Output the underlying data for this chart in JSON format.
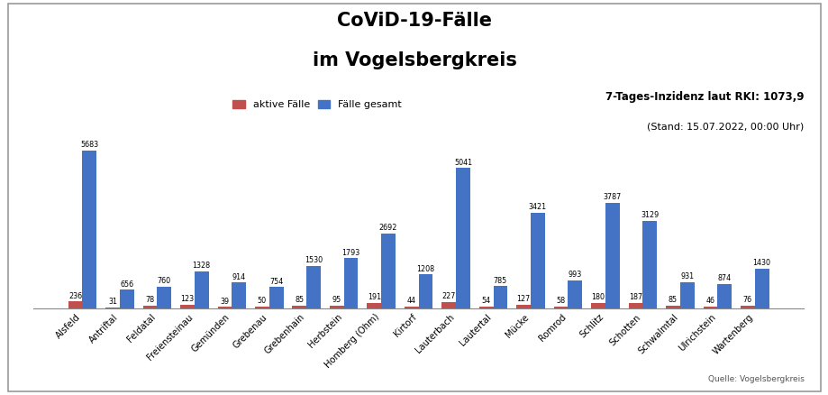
{
  "categories": [
    "Alsfeld",
    "Antriftal",
    "Feldatal",
    "Freiensteinau",
    "Gemünden",
    "Grebenau",
    "Grebenhain",
    "Herbstein",
    "Homberg (Ohm)",
    "Kirtorf",
    "Lauterbach",
    "Lautertal",
    "Mücke",
    "Romrod",
    "Schlitz",
    "Schotten",
    "Schwalmtal",
    "Ulrichstein",
    "Wartenberg"
  ],
  "faelle_gesamt": [
    5683,
    656,
    760,
    1328,
    914,
    754,
    1530,
    1793,
    2692,
    1208,
    5041,
    785,
    3421,
    993,
    3787,
    3129,
    931,
    874,
    1430
  ],
  "aktive_faelle": [
    236,
    31,
    78,
    123,
    39,
    50,
    85,
    95,
    191,
    44,
    227,
    54,
    127,
    58,
    180,
    187,
    85,
    46,
    76
  ],
  "color_gesamt": "#4472C4",
  "color_aktiv": "#C0504D",
  "title_line1": "CoViD-19-Fälle",
  "title_line2": "im Vogelsbergkreis",
  "legend_aktiv": "aktive Fälle",
  "legend_gesamt": "Fälle gesamt",
  "inzidenz_text": "7-Tages-Inzidenz laut RKI: 1073,9",
  "stand_text": "(Stand: 15.07.2022, 00:00 Uhr)",
  "quelle_text": "Quelle: Vogelsbergkreis",
  "background_color": "#FFFFFF",
  "ylim": [
    0,
    6400
  ],
  "bar_width": 0.38
}
